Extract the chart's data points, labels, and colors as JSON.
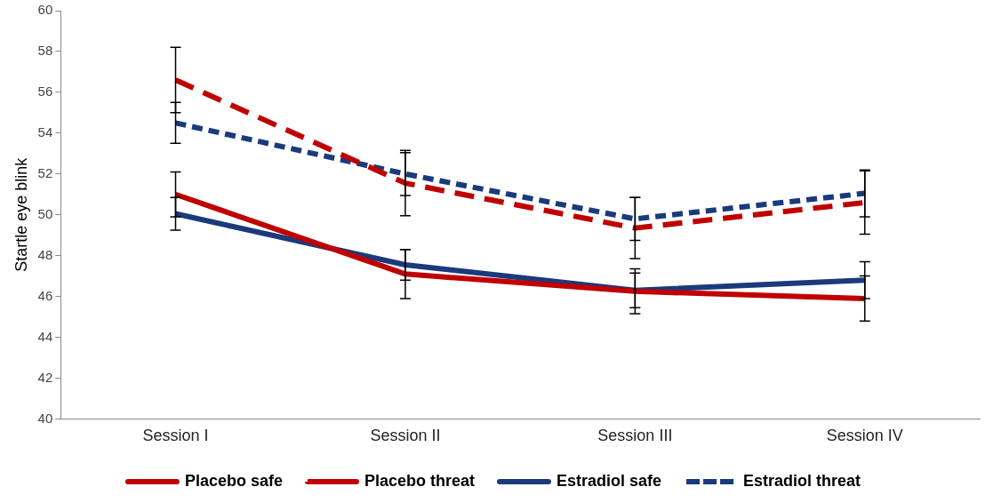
{
  "chart_data": {
    "type": "line",
    "ylabel": "Startle eye blink",
    "categories": [
      "Session I",
      "Session II",
      "Session III",
      "Session IV"
    ],
    "ylim": [
      40,
      60
    ],
    "yticks": [
      40,
      42,
      44,
      46,
      48,
      50,
      52,
      54,
      56,
      58,
      60
    ],
    "grid": false,
    "legend": "bottom",
    "marker": "none",
    "series": [
      {
        "name": "Placebo safe",
        "color": "#c00000",
        "line_style": "solid",
        "values": [
          51.0,
          47.1,
          46.25,
          45.9
        ],
        "errors": [
          1.1,
          1.2,
          1.1,
          1.1
        ]
      },
      {
        "name": "Placebo threat",
        "color": "#c00000",
        "line_style": "dashed",
        "values": [
          56.6,
          51.55,
          49.35,
          50.6
        ],
        "errors": [
          1.6,
          1.6,
          1.5,
          1.55
        ]
      },
      {
        "name": "Estradiol safe",
        "color": "#1a3a7c",
        "line_style": "solid",
        "values": [
          50.05,
          47.55,
          46.3,
          46.8
        ],
        "errors": [
          0.8,
          0.75,
          0.85,
          0.9
        ]
      },
      {
        "name": "Estradiol threat",
        "color": "#1a3a7c",
        "line_style": "dotted",
        "values": [
          54.5,
          52.0,
          49.8,
          51.05
        ],
        "errors": [
          1.0,
          1.05,
          1.05,
          1.15
        ]
      }
    ]
  }
}
